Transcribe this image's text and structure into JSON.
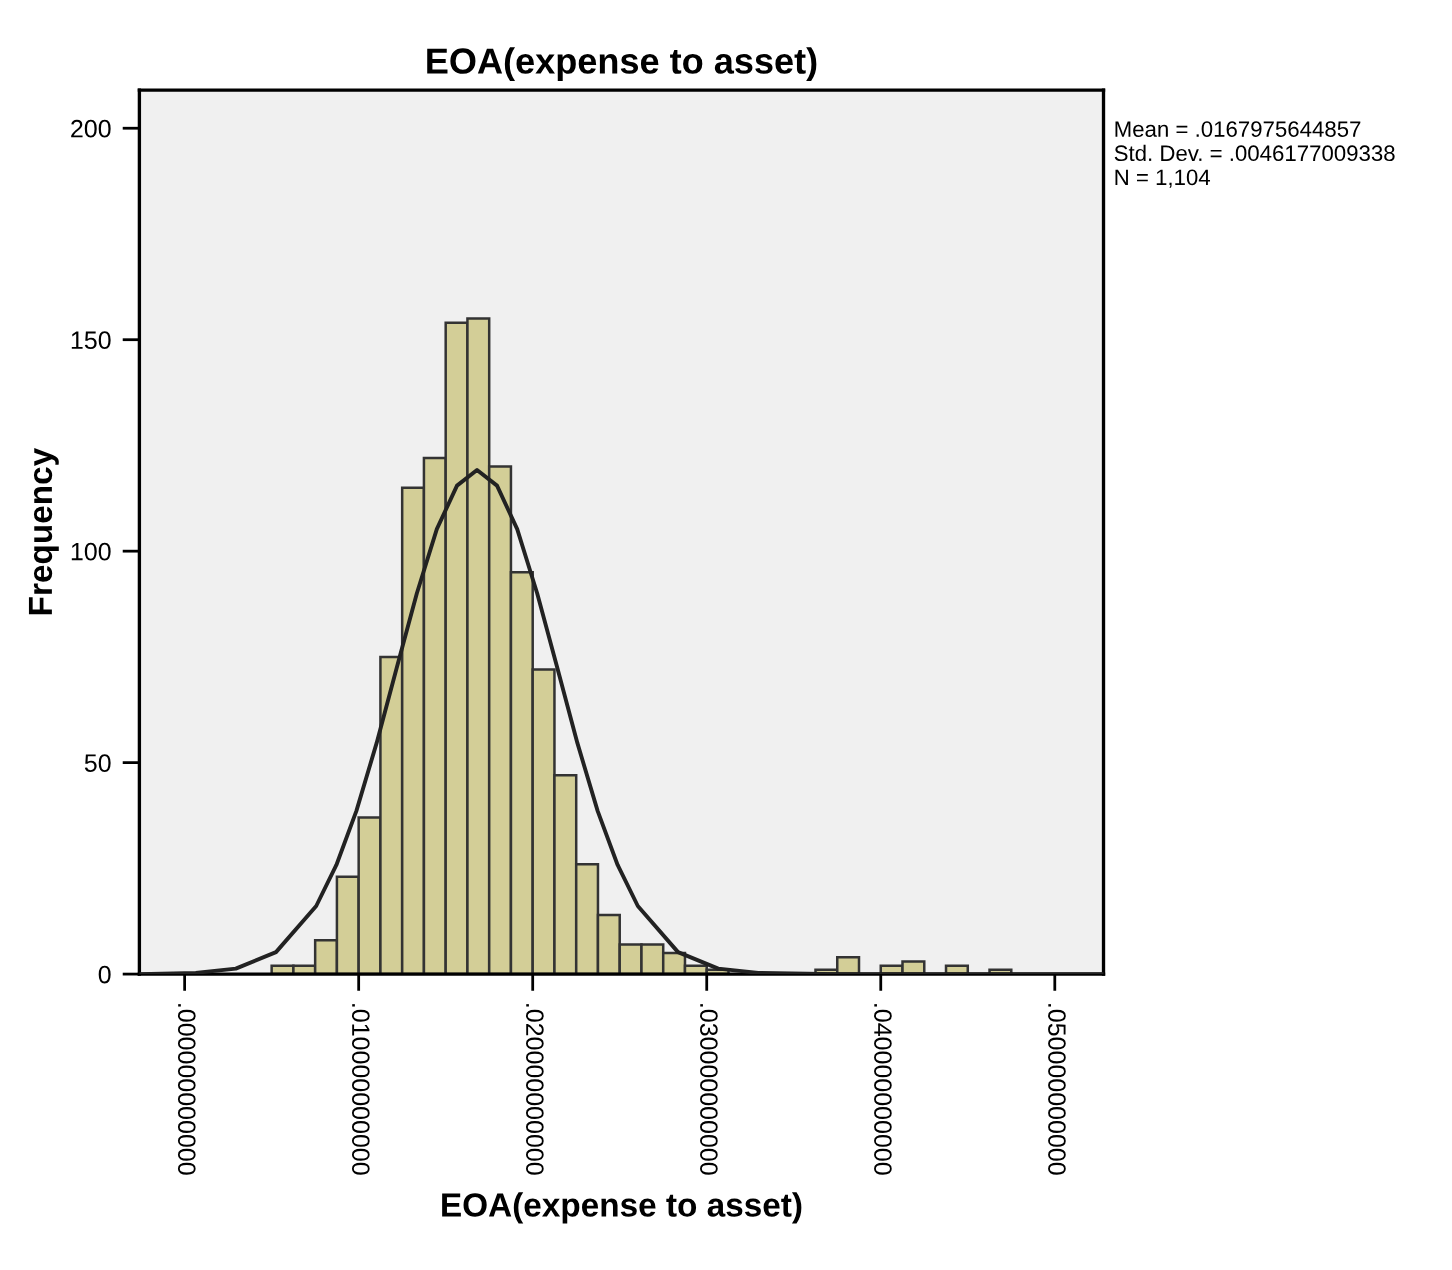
{
  "chart_data": {
    "type": "histogram",
    "title": "EOA(expense to asset)",
    "xlabel": "EOA(expense to asset)",
    "ylabel": "Frequency",
    "bins": [
      0.005,
      0.00625,
      0.0075,
      0.00875,
      0.01,
      0.01125,
      0.0125,
      0.01375,
      0.015,
      0.01625,
      0.0175,
      0.01875,
      0.02,
      0.02125,
      0.0225,
      0.02375,
      0.025,
      0.02625,
      0.0275,
      0.02875,
      0.03,
      0.03125,
      0.0325,
      0.03375,
      0.035,
      0.03625,
      0.0375,
      0.03875,
      0.04,
      0.04125,
      0.0425,
      0.04375,
      0.045,
      0.04625,
      0.0475
    ],
    "values": [
      2,
      2,
      8,
      23,
      37,
      75,
      115,
      122,
      154,
      155,
      120,
      95,
      72,
      47,
      26,
      14,
      7,
      7,
      5,
      2,
      1,
      0,
      0,
      0,
      0,
      1,
      4,
      0,
      2,
      3,
      0,
      2,
      0,
      1
    ],
    "color": "#d3ce97",
    "series": [
      {
        "type": "line",
        "color": "#222222",
        "x": [
          -0.0026,
          0.00064,
          0.00294,
          0.00525,
          0.00756,
          0.00872,
          0.00987,
          0.01103,
          0.01218,
          0.01334,
          0.01449,
          0.01565,
          0.0168,
          0.01795,
          0.01911,
          0.02026,
          0.02142,
          0.02257,
          0.02373,
          0.02488,
          0.02604,
          0.02835,
          0.03066,
          0.03296,
          0.0375,
          0.0528
        ],
        "values": [
          0,
          0.3,
          1.3,
          5.2,
          16.1,
          25.8,
          38.6,
          54.6,
          72.3,
          90.0,
          105.2,
          115.5,
          119.2,
          115.5,
          105.2,
          90.0,
          72.3,
          54.6,
          38.6,
          25.8,
          16.1,
          5.2,
          1.3,
          0.3,
          0,
          0
        ]
      }
    ],
    "xlim": [
      -0.0026,
      0.0528
    ],
    "ylim": [
      0,
      209
    ],
    "xticks": [
      {
        "value": 0,
        "label": ".000000000000"
      },
      {
        "value": 0.01,
        "label": ".010000000000"
      },
      {
        "value": 0.02,
        "label": ".020000000000"
      },
      {
        "value": 0.03,
        "label": ".030000000000"
      },
      {
        "value": 0.04,
        "label": ".040000000000"
      },
      {
        "value": 0.05,
        "label": ".050000000000"
      }
    ],
    "yticks": [
      0,
      50,
      100,
      150,
      200
    ],
    "annotations": [
      "Mean = .0167975644857",
      "Std. Dev. = .0046177009338",
      "N = 1,104"
    ]
  }
}
